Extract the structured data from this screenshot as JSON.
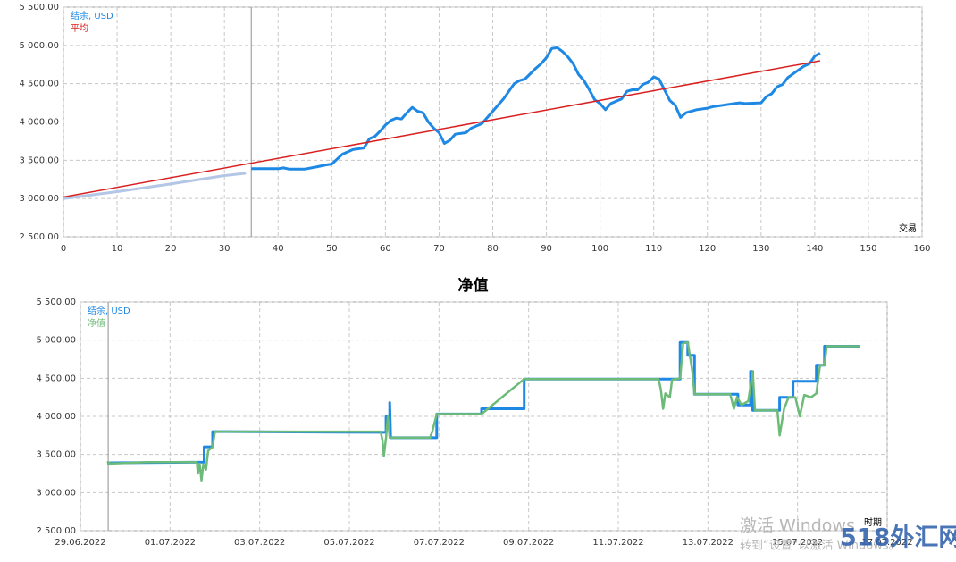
{
  "chart_data": [
    {
      "type": "line",
      "x_label": "交易",
      "marker_x": 35,
      "xlim": [
        0,
        160
      ],
      "xticks": [
        0,
        10,
        20,
        30,
        40,
        50,
        60,
        70,
        80,
        90,
        100,
        110,
        120,
        130,
        140,
        150,
        160
      ],
      "ylim": [
        2500,
        5500
      ],
      "yticks": [
        {
          "value": 2500,
          "label": "2 500.00"
        },
        {
          "value": 3000,
          "label": "3 000.00"
        },
        {
          "value": 3500,
          "label": "3 500.00"
        },
        {
          "value": 4000,
          "label": "4 000.00"
        },
        {
          "value": 4500,
          "label": "4 500.00"
        },
        {
          "value": 5000,
          "label": "5 000.00"
        },
        {
          "value": 5500,
          "label": "5 500.00"
        }
      ],
      "grid": true,
      "series": [
        {
          "name": "结余, USD",
          "color": "#1e88e5",
          "faded_color": "#b3c6e6",
          "width": 3,
          "x": [
            0,
            10,
            20,
            30,
            34,
            35,
            40,
            41,
            42,
            45,
            47,
            49,
            50,
            52,
            54,
            56,
            57,
            58,
            59,
            60,
            61,
            62,
            63,
            64,
            65,
            66,
            67,
            68,
            69,
            70,
            71,
            72,
            73,
            75,
            76,
            78,
            80,
            82,
            84,
            85,
            86,
            88,
            89,
            90,
            91,
            92,
            93,
            94,
            95,
            96,
            97,
            98,
            99,
            100,
            101,
            102,
            104,
            105,
            106,
            107,
            108,
            109,
            110,
            111,
            112,
            113,
            114,
            115,
            116,
            118,
            120,
            121,
            123,
            125,
            126,
            127,
            130,
            131,
            132,
            133,
            134,
            135,
            136,
            137,
            138,
            139,
            140,
            141
          ],
          "values": [
            3000,
            3090,
            3190,
            3300,
            3330,
            3390,
            3390,
            3400,
            3385,
            3385,
            3410,
            3440,
            3450,
            3580,
            3640,
            3660,
            3780,
            3810,
            3880,
            3960,
            4020,
            4050,
            4040,
            4120,
            4190,
            4140,
            4120,
            4000,
            3920,
            3860,
            3720,
            3760,
            3840,
            3860,
            3920,
            3980,
            4140,
            4300,
            4500,
            4540,
            4560,
            4700,
            4760,
            4840,
            4960,
            4970,
            4920,
            4850,
            4760,
            4620,
            4540,
            4420,
            4290,
            4240,
            4160,
            4240,
            4300,
            4400,
            4420,
            4420,
            4490,
            4520,
            4590,
            4560,
            4420,
            4280,
            4220,
            4060,
            4120,
            4160,
            4180,
            4200,
            4220,
            4240,
            4250,
            4240,
            4250,
            4330,
            4370,
            4460,
            4490,
            4580,
            4630,
            4680,
            4730,
            4760,
            4860,
            4900
          ]
        },
        {
          "name": "平均",
          "color": "#d92020",
          "width": 1.5,
          "x": [
            0,
            141
          ],
          "values": [
            3020,
            4800
          ]
        }
      ]
    },
    {
      "type": "line",
      "title": "净值",
      "x_label": "时期",
      "marker_x": 0.62,
      "xlim": [
        0,
        18
      ],
      "xticks": [
        {
          "value": 0,
          "label": "29.06.2022"
        },
        {
          "value": 2,
          "label": "01.07.2022"
        },
        {
          "value": 4,
          "label": "03.07.2022"
        },
        {
          "value": 6,
          "label": "05.07.2022"
        },
        {
          "value": 8,
          "label": "07.07.2022"
        },
        {
          "value": 10,
          "label": "09.07.2022"
        },
        {
          "value": 12,
          "label": "11.07.2022"
        },
        {
          "value": 14,
          "label": "13.07.2022"
        },
        {
          "value": 16,
          "label": "15.07.2022"
        },
        {
          "value": 18,
          "label": "17.07.2022"
        }
      ],
      "ylim": [
        2500,
        5500
      ],
      "yticks": [
        {
          "value": 2500,
          "label": "2 500.00"
        },
        {
          "value": 3000,
          "label": "3 000.00"
        },
        {
          "value": 3500,
          "label": "3 500.00"
        },
        {
          "value": 4000,
          "label": "4 000.00"
        },
        {
          "value": 4500,
          "label": "4 500.00"
        },
        {
          "value": 5000,
          "label": "5 000.00"
        },
        {
          "value": 5500,
          "label": "5 500.00"
        }
      ],
      "grid": true,
      "series": [
        {
          "name": "结余, USD",
          "color": "#1e88e5",
          "width": 3,
          "x": [
            0.6,
            2.76,
            2.76,
            2.95,
            2.95,
            6.82,
            6.82,
            6.9,
            6.9,
            6.92,
            7.95,
            7.95,
            8.95,
            8.95,
            9.9,
            9.9,
            13.38,
            13.38,
            13.55,
            13.55,
            13.7,
            13.7,
            14.67,
            14.67,
            14.95,
            14.95,
            15.0,
            15.0,
            15.6,
            15.6,
            15.9,
            15.9,
            16.42,
            16.42,
            16.6,
            16.6,
            17.4
          ],
          "values": [
            3390,
            3400,
            3600,
            3600,
            3800,
            3790,
            4000,
            4000,
            4180,
            3720,
            3720,
            4030,
            4030,
            4100,
            4100,
            4490,
            4490,
            4970,
            4970,
            4800,
            4800,
            4290,
            4290,
            4150,
            4150,
            4590,
            4590,
            4080,
            4080,
            4250,
            4250,
            4460,
            4460,
            4670,
            4670,
            4920,
            4920
          ]
        },
        {
          "name": "净值",
          "color": "#6dbb78",
          "width": 2.5,
          "x": [
            0.6,
            0.65,
            1.5,
            2.6,
            2.62,
            2.66,
            2.7,
            2.74,
            2.8,
            2.85,
            2.95,
            3.0,
            6.7,
            6.74,
            6.77,
            6.82,
            6.86,
            6.9,
            7.8,
            7.85,
            7.95,
            8.95,
            9.9,
            12.9,
            12.95,
            13.0,
            13.05,
            13.15,
            13.2,
            13.38,
            13.45,
            13.55,
            13.65,
            13.7,
            14.5,
            14.58,
            14.65,
            14.75,
            14.9,
            15.0,
            15.05,
            15.55,
            15.6,
            15.7,
            15.8,
            15.95,
            16.05,
            16.15,
            16.3,
            16.42,
            16.5,
            16.6,
            16.65,
            17.4
          ],
          "values": [
            3410,
            3380,
            3400,
            3400,
            3250,
            3380,
            3160,
            3370,
            3300,
            3550,
            3600,
            3800,
            3800,
            3680,
            3480,
            3720,
            4000,
            3720,
            3720,
            3800,
            4030,
            4030,
            4490,
            4490,
            4350,
            4100,
            4300,
            4250,
            4480,
            4500,
            4960,
            4970,
            4600,
            4290,
            4290,
            4100,
            4250,
            4150,
            4200,
            4590,
            4080,
            4080,
            3750,
            4100,
            4250,
            4250,
            4000,
            4280,
            4250,
            4300,
            4670,
            4670,
            4920,
            4920
          ]
        }
      ]
    }
  ],
  "overlay": {
    "activate_title": "激活 Windows",
    "activate_hint": "转到“设置”以激活 Windows。",
    "site": "518外汇网"
  }
}
